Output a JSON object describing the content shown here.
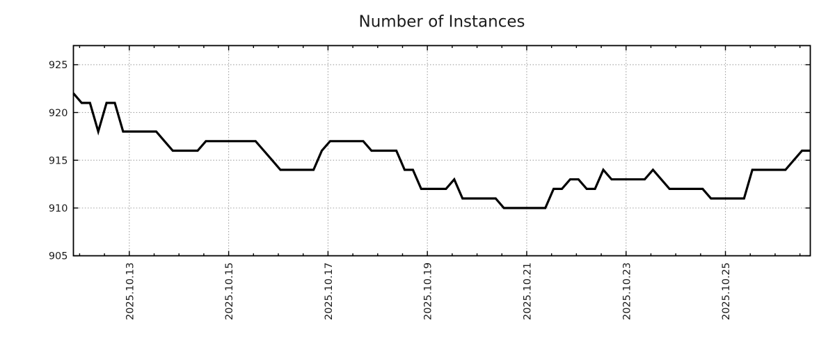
{
  "chart_data": {
    "type": "line",
    "title": "Number of Instances",
    "xlabel": "",
    "ylabel": "",
    "ylim": [
      905,
      927
    ],
    "y_ticks": [
      905,
      910,
      915,
      920,
      925
    ],
    "x_tick_labels": [
      "2025.10.13",
      "2025.10.15",
      "2025.10.17",
      "2025.10.19",
      "2025.10.21",
      "2025.10.23",
      "2025.10.25"
    ],
    "x_major_tick_interval": "2 days",
    "x_minor_tick_interval": "12 hours",
    "grid": "dotted gridlines at major ticks only",
    "legend_position": "none",
    "sample_interval": "4 hours",
    "x_start": "2025-10-11 21:00",
    "x_end": "2025-10-26 17:00",
    "colors": {
      "line": "#000000",
      "grid": "#9e9e9e",
      "axis": "#000000",
      "text": "#1c1c1c",
      "background": "#ffffff"
    },
    "series": [
      {
        "name": "Number of Instances",
        "color": "#000000",
        "x": [
          "2025-10-11 21:00",
          "2025-10-12 01:00",
          "2025-10-12 05:00",
          "2025-10-12 09:00",
          "2025-10-12 13:00",
          "2025-10-12 17:00",
          "2025-10-12 21:00",
          "2025-10-13 01:00",
          "2025-10-13 05:00",
          "2025-10-13 09:00",
          "2025-10-13 13:00",
          "2025-10-13 17:00",
          "2025-10-13 21:00",
          "2025-10-14 01:00",
          "2025-10-14 05:00",
          "2025-10-14 09:00",
          "2025-10-14 13:00",
          "2025-10-14 17:00",
          "2025-10-14 21:00",
          "2025-10-15 01:00",
          "2025-10-15 05:00",
          "2025-10-15 09:00",
          "2025-10-15 13:00",
          "2025-10-15 17:00",
          "2025-10-15 21:00",
          "2025-10-16 01:00",
          "2025-10-16 05:00",
          "2025-10-16 09:00",
          "2025-10-16 13:00",
          "2025-10-16 17:00",
          "2025-10-16 21:00",
          "2025-10-17 01:00",
          "2025-10-17 05:00",
          "2025-10-17 09:00",
          "2025-10-17 13:00",
          "2025-10-17 17:00",
          "2025-10-17 21:00",
          "2025-10-18 01:00",
          "2025-10-18 05:00",
          "2025-10-18 09:00",
          "2025-10-18 13:00",
          "2025-10-18 17:00",
          "2025-10-18 21:00",
          "2025-10-19 01:00",
          "2025-10-19 05:00",
          "2025-10-19 09:00",
          "2025-10-19 13:00",
          "2025-10-19 17:00",
          "2025-10-19 21:00",
          "2025-10-20 01:00",
          "2025-10-20 05:00",
          "2025-10-20 09:00",
          "2025-10-20 13:00",
          "2025-10-20 17:00",
          "2025-10-20 21:00",
          "2025-10-21 01:00",
          "2025-10-21 05:00",
          "2025-10-21 09:00",
          "2025-10-21 13:00",
          "2025-10-21 17:00",
          "2025-10-21 21:00",
          "2025-10-22 01:00",
          "2025-10-22 05:00",
          "2025-10-22 09:00",
          "2025-10-22 13:00",
          "2025-10-22 17:00",
          "2025-10-22 21:00",
          "2025-10-23 01:00",
          "2025-10-23 05:00",
          "2025-10-23 09:00",
          "2025-10-23 13:00",
          "2025-10-23 17:00",
          "2025-10-23 21:00",
          "2025-10-24 01:00",
          "2025-10-24 05:00",
          "2025-10-24 09:00",
          "2025-10-24 13:00",
          "2025-10-24 17:00",
          "2025-10-24 21:00",
          "2025-10-25 01:00",
          "2025-10-25 05:00",
          "2025-10-25 09:00",
          "2025-10-25 13:00",
          "2025-10-25 17:00",
          "2025-10-25 21:00",
          "2025-10-26 01:00",
          "2025-10-26 05:00",
          "2025-10-26 09:00",
          "2025-10-26 13:00",
          "2025-10-26 17:00"
        ],
        "values": [
          922,
          921,
          921,
          918,
          921,
          921,
          918,
          918,
          918,
          918,
          918,
          917,
          916,
          916,
          916,
          916,
          917,
          917,
          917,
          917,
          917,
          917,
          917,
          916,
          915,
          914,
          914,
          914,
          914,
          914,
          916,
          917,
          917,
          917,
          917,
          917,
          916,
          916,
          916,
          916,
          914,
          914,
          912,
          912,
          912,
          912,
          913,
          911,
          911,
          911,
          911,
          911,
          910,
          910,
          910,
          910,
          910,
          910,
          912,
          912,
          913,
          913,
          912,
          912,
          914,
          913,
          913,
          913,
          913,
          913,
          914,
          913,
          912,
          912,
          912,
          912,
          912,
          911,
          911,
          911,
          911,
          911,
          914,
          914,
          914,
          914,
          914,
          915,
          916,
          916
        ]
      }
    ]
  }
}
